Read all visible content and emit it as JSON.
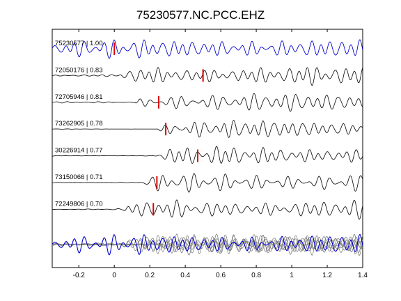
{
  "chart_data": {
    "type": "line",
    "title": "75230577.NC.PCC.EHZ",
    "xlabel": "",
    "ylabel": "",
    "xlim": [
      -0.35,
      1.4
    ],
    "xticks": [
      -0.2,
      0,
      0.2,
      0.4,
      0.6,
      0.8,
      1,
      1.2,
      1.4
    ],
    "xtick_labels": [
      "-0.2",
      "0",
      "0.2",
      "0.4",
      "0.6",
      "0.8",
      "1",
      "1.2",
      "1.4"
    ],
    "grid": false,
    "legend": "none",
    "colors": {
      "reference": "#0000cc",
      "trace": "#1a1a1a",
      "pick": "#dd0000",
      "stack": "#808080"
    },
    "traces": [
      {
        "label": "75230577 | 1.00",
        "pick_time": 0.0,
        "onset": -0.35,
        "pre_amp": 0.35,
        "color_key": "reference"
      },
      {
        "label": "72050176 | 0.83",
        "pick_time": 0.5,
        "onset": 0.02,
        "pre_amp": 0.1,
        "color_key": "trace"
      },
      {
        "label": "72705946 | 0.81",
        "pick_time": 0.25,
        "onset": 0.12,
        "pre_amp": 0.08,
        "color_key": "trace"
      },
      {
        "label": "73262905 | 0.78",
        "pick_time": 0.29,
        "onset": 0.24,
        "pre_amp": 0.02,
        "color_key": "trace"
      },
      {
        "label": "30226914 | 0.77",
        "pick_time": 0.47,
        "onset": 0.22,
        "pre_amp": 0.04,
        "color_key": "trace"
      },
      {
        "label": "73150066 | 0.71",
        "pick_time": 0.24,
        "onset": 0.15,
        "pre_amp": 0.06,
        "color_key": "trace"
      },
      {
        "label": "72249806 | 0.70",
        "pick_time": 0.22,
        "onset": 0.05,
        "pre_amp": 0.08,
        "color_key": "trace"
      }
    ],
    "stack": {
      "label": "",
      "num_overlaid": 7
    }
  }
}
